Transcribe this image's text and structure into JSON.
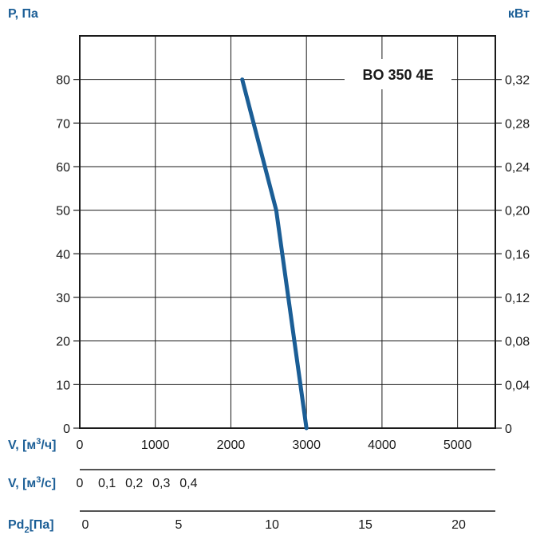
{
  "chart_data": {
    "type": "line",
    "left_axis_label": "P, Па",
    "right_axis_label": "кВт",
    "model_label": "BO 350 4E",
    "x_axes": [
      {
        "label": "V, [м³/ч]",
        "label_main": "V, [м",
        "label_sup": "3",
        "label_tail": "/ч]",
        "ticks": [
          "0",
          "1000",
          "2000",
          "3000",
          "4000",
          "5000"
        ],
        "range": [
          0,
          5500
        ]
      },
      {
        "label": "V, [м³/с]",
        "label_main": "V, [м",
        "label_sup": "3",
        "label_tail": "/с]",
        "ticks": [
          "0",
          "0,1",
          "0,2",
          "0,3",
          "0,4"
        ],
        "range": [
          0,
          1.528
        ]
      },
      {
        "label": "Pd₂[Па]",
        "label_main": "Pd",
        "label_sub": "2",
        "label_tail": "[Па]",
        "ticks": [
          "0",
          "5",
          "10",
          "15",
          "20"
        ]
      }
    ],
    "y_left": {
      "ticks": [
        "0",
        "10",
        "20",
        "30",
        "40",
        "50",
        "60",
        "70",
        "80"
      ],
      "range": [
        0,
        90
      ]
    },
    "y_right": {
      "ticks": [
        "0",
        "0,04",
        "0,08",
        "0,12",
        "0,16",
        "0,20",
        "0,24",
        "0,28",
        "0,32"
      ],
      "range": [
        0,
        0.36
      ]
    },
    "grid": true,
    "series": [
      {
        "color": "#1b5e96",
        "x": [
          2150,
          2600,
          3000
        ],
        "y": [
          80,
          50,
          0
        ]
      }
    ]
  }
}
